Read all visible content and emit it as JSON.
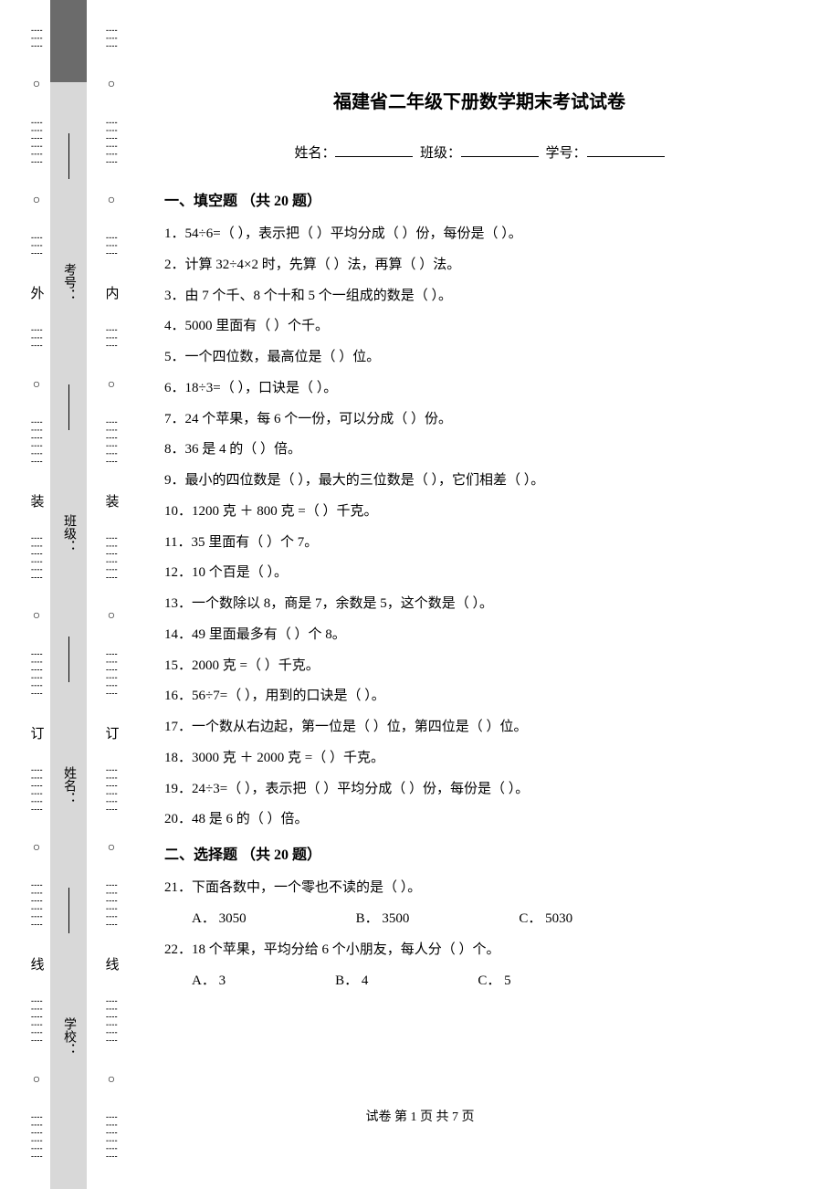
{
  "title": "福建省二年级下册数学期末考试试卷",
  "info": {
    "name_label": "姓名：",
    "class_label": "班级：",
    "id_label": "学号："
  },
  "section1": {
    "heading": "一、填空题 （共 20 题）",
    "items": [
      "1．54÷6=（  ），表示把（  ）平均分成（  ）份，每份是（  ）。",
      "2．计算 32÷4×2 时，先算（  ）法，再算（  ）法。",
      "3．由 7 个千、8 个十和 5 个一组成的数是（  ）。",
      "4．5000 里面有（  ）个千。",
      "5．一个四位数，最高位是（  ）位。",
      "6．18÷3=（  ），口诀是（  ）。",
      "7．24 个苹果，每 6 个一份，可以分成（  ）份。",
      "8．36 是 4 的（  ）倍。",
      "9．最小的四位数是（  ），最大的三位数是（  ），它们相差（  ）。",
      "10．1200 克 ＋ 800 克 =（  ）千克。",
      "11．35 里面有（  ）个 7。",
      "12．10 个百是（  ）。",
      "13．一个数除以 8，商是 7，余数是 5，这个数是（  ）。",
      "14．49 里面最多有（  ）个 8。",
      "15．2000 克 =（  ）千克。",
      "16．56÷7=（  ），用到的口诀是（  ）。",
      "17．一个数从右边起，第一位是（  ）位，第四位是（  ）位。",
      "18．3000 克 ＋ 2000 克 =（  ）千克。",
      "19．24÷3=（  ），表示把（  ）平均分成（  ）份，每份是（  ）。",
      "20．48 是 6 的（  ）倍。"
    ]
  },
  "section2": {
    "heading": "二、选择题 （共 20 题）",
    "q21": {
      "text": "21．下面各数中，一个零也不读的是（  ）。",
      "optA": "A． 3050",
      "optB": "B． 3500",
      "optC": "C． 5030"
    },
    "q22": {
      "text": "22．18 个苹果，平均分给 6 个小朋友，每人分（  ）个。",
      "optA": "A． 3",
      "optB": "B． 4",
      "optC": "C． 5"
    }
  },
  "footer": "试卷 第 1 页 共 7 页",
  "binding": {
    "outer_char": "外",
    "inner_char": "内",
    "zhuang": "装",
    "ding": "订",
    "xian": "线",
    "school": "学校：",
    "name": "姓名：",
    "class": "班级：",
    "exam_no": "考号："
  }
}
